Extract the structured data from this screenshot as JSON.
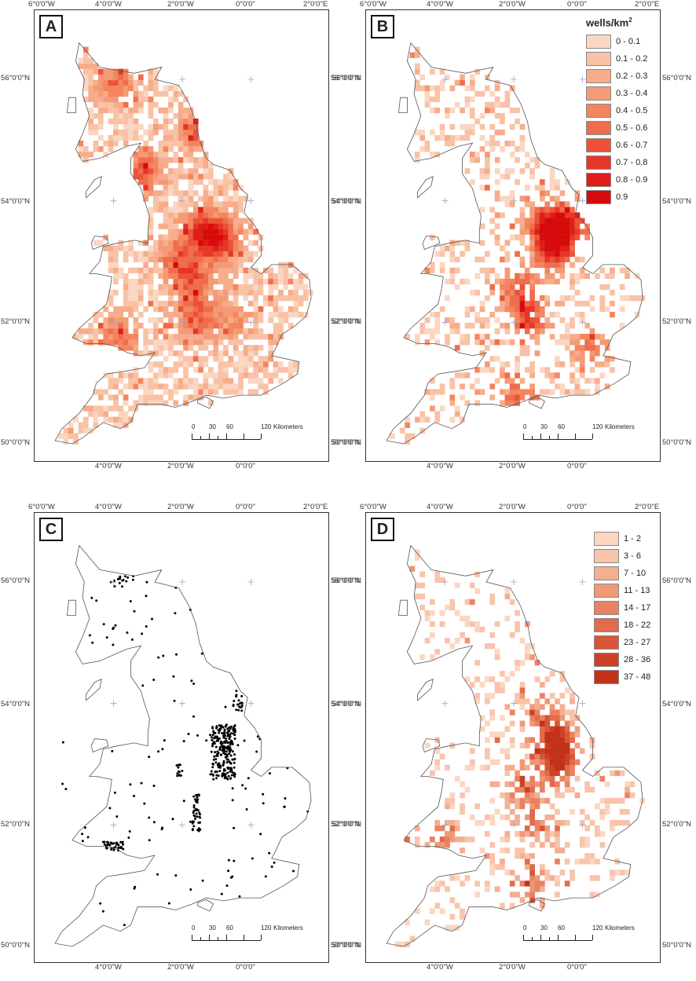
{
  "panels": [
    {
      "id": "A",
      "type": "density"
    },
    {
      "id": "B",
      "type": "density"
    },
    {
      "id": "C",
      "type": "points"
    },
    {
      "id": "D",
      "type": "counts"
    }
  ],
  "axes": {
    "x_labels": [
      "6°0'0\"W",
      "4°0'0\"W",
      "2°0'0\"W",
      "0°0'0\"",
      "2°0'0\"E"
    ],
    "x_bottom_labels": [
      "4°0'0\"W",
      "2°0'0\"W",
      "0°0'0\""
    ],
    "y_labels": [
      "56°0'0\"N",
      "54°0'0\"N",
      "52°0'0\"N",
      "50°0'0\"N"
    ]
  },
  "legend_density": {
    "title": "wells/km",
    "title_sup": "2",
    "classes": [
      {
        "label": "0 - 0.1",
        "color": "#fbd6c2"
      },
      {
        "label": "0.1 - 0.2",
        "color": "#f9c2a6"
      },
      {
        "label": "0.2 - 0.3",
        "color": "#f7ad8b"
      },
      {
        "label": "0.3 - 0.4",
        "color": "#f59a76"
      },
      {
        "label": "0.4 - 0.5",
        "color": "#f3855f"
      },
      {
        "label": "0.5 - 0.6",
        "color": "#ef6d4c"
      },
      {
        "label": "0.6 - 0.7",
        "color": "#eb5238"
      },
      {
        "label": "0.7 - 0.8",
        "color": "#e63628"
      },
      {
        "label": "0.8 - 0.9",
        "color": "#df1e1a"
      },
      {
        "label": "0.9",
        "color": "#d70b0b"
      }
    ]
  },
  "legend_counts": {
    "classes": [
      {
        "label": "1 - 2",
        "color": "#fbd6c2"
      },
      {
        "label": "3 - 6",
        "color": "#f8c4ab"
      },
      {
        "label": "7 - 10",
        "color": "#f4ae92"
      },
      {
        "label": "11 - 13",
        "color": "#ef9878"
      },
      {
        "label": "14 - 17",
        "color": "#e98262"
      },
      {
        "label": "18 - 22",
        "color": "#e16b4c"
      },
      {
        "label": "23 - 27",
        "color": "#d85538"
      },
      {
        "label": "28 - 36",
        "color": "#cc4127"
      },
      {
        "label": "37 - 48",
        "color": "#c13219"
      }
    ]
  },
  "scalebar": {
    "ticks": [
      "0",
      "30",
      "60",
      "120"
    ],
    "unit": "Kilometers"
  },
  "colors": {
    "coast": "#555555",
    "graticule_cross": "#9aa6c0",
    "points": "#000000"
  }
}
